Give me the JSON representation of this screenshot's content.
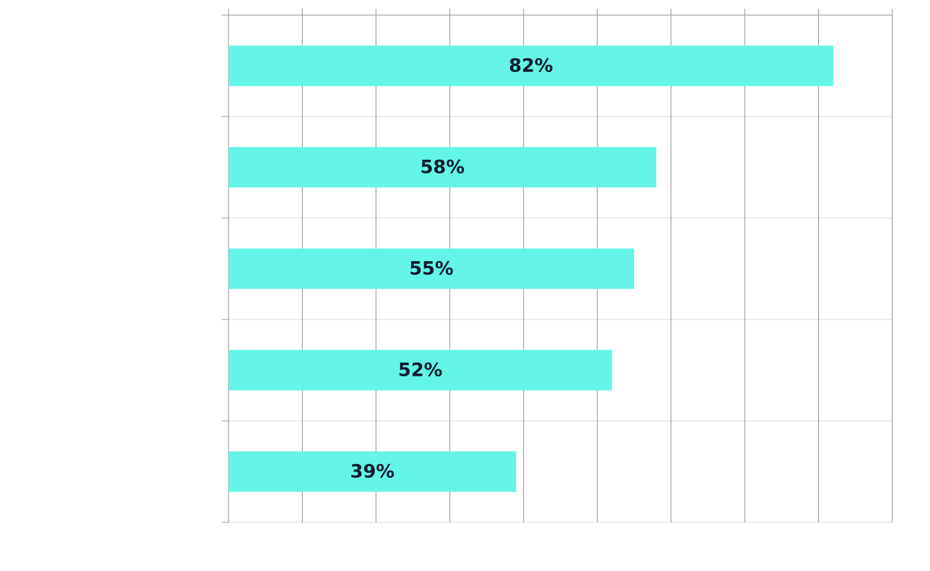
{
  "chart_data": {
    "type": "bar",
    "orientation": "horizontal",
    "categories": [
      "",
      "",
      "",
      "",
      ""
    ],
    "values": [
      82,
      58,
      55,
      52,
      39
    ],
    "data_labels": [
      "82%",
      "58%",
      "55%",
      "52%",
      "39%"
    ],
    "xlim": [
      0,
      90
    ],
    "x_gridline_step": 10,
    "grid": true,
    "legend": "none",
    "title": "",
    "xlabel": "",
    "ylabel": ""
  },
  "colors": {
    "bar": "#64f5e6",
    "label": "#0f1e2d",
    "grid_vertical": "#8c8c8c",
    "grid_horizontal": "#d9d9d9",
    "axis": "#9a9a9a"
  }
}
